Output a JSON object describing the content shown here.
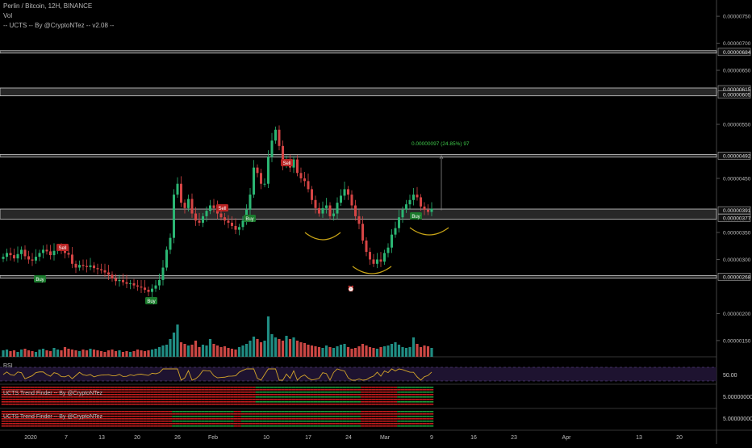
{
  "legend": {
    "title": "Perlin / Bitcoin, 12H, BINANCE",
    "volume_label": "Vol",
    "indicator_label": "-- UCTS -- By @CryptoNTez -- v2.08 --"
  },
  "panes": {
    "rsi_label": "RSI",
    "rsi_value": "50.00",
    "trend1_label": "UCTS Trend Finder -- By @CryptoNTez",
    "trend1_value": "5.00000000",
    "trend2_label": "UCTS Trend Finder -- By @CryptoNTez",
    "trend2_value": "5.00000000"
  },
  "price_axis": {
    "ticks": [
      "0.00000750",
      "0.00000700",
      "0.00000650",
      "0.00000550",
      "0.00000450",
      "0.00000350",
      "0.00000300",
      "0.00000200",
      "0.00000150"
    ],
    "tick_values": [
      750,
      700,
      650,
      550,
      450,
      350,
      300,
      200,
      150
    ],
    "level_labels": [
      "0.00000684",
      "0.00000615",
      "0.00000605",
      "0.00000492",
      "0.00000391",
      "0.00000377",
      "0.00000268"
    ],
    "level_values": [
      684,
      615,
      605,
      492,
      391,
      377,
      268
    ]
  },
  "time_axis": {
    "labels": [
      "2020",
      "7",
      "13",
      "20",
      "26",
      "Feb",
      "10",
      "17",
      "24",
      "Mar",
      "9",
      "16",
      "23",
      "Apr",
      "13",
      "20"
    ]
  },
  "measure": {
    "text": "0.00000097 (24.85%) 97"
  },
  "signals": [
    {
      "label": "Sell",
      "type": "sell"
    },
    {
      "label": "Buy",
      "type": "buy"
    },
    {
      "label": "Buy",
      "type": "buy"
    },
    {
      "label": "Sell",
      "type": "sell"
    },
    {
      "label": "Buy",
      "type": "buy"
    },
    {
      "label": "Sell",
      "type": "sell"
    },
    {
      "label": "Buy",
      "type": "buy"
    }
  ],
  "colors": {
    "background": "#000000",
    "up": "#26a69a",
    "down": "#ef5350",
    "up_candle": "#2bb673",
    "down_candle": "#d64545",
    "level_band": "#9e9e9e",
    "rsi_line": "#d4a52a",
    "rsi_bg": "#1e1330",
    "pattern": "#c8a417",
    "measure": "#3ec94a",
    "sell_badge": "#b82323",
    "buy_badge": "#1b7a2d"
  },
  "chart_data": {
    "type": "candlestick",
    "title": "Perlin / Bitcoin, 12H, BINANCE",
    "series": [
      {
        "name": "Perlin / Bitcoin",
        "type": "candlestick",
        "close": [
          305,
          312,
          308,
          302,
          310,
          318,
          306,
          300,
          298,
          305,
          312,
          318,
          315,
          308,
          316,
          322,
          318,
          312,
          309,
          292,
          285,
          290,
          288,
          286,
          289,
          284,
          282,
          280,
          276,
          272,
          265,
          260,
          262,
          258,
          255,
          256,
          252,
          250,
          248,
          244,
          240,
          246,
          252,
          262,
          285,
          318,
          340,
          420,
          440,
          405,
          395,
          412,
          385,
          372,
          368,
          380,
          390,
          400,
          395,
          385,
          378,
          372,
          368,
          362,
          355,
          360,
          372,
          392,
          420,
          470,
          460,
          440,
          440,
          490,
          520,
          540,
          510,
          475,
          480,
          470,
          485,
          460,
          450,
          445,
          430,
          410,
          395,
          385,
          395,
          400,
          380,
          385,
          405,
          418,
          430,
          420,
          400,
          380,
          366,
          335,
          314,
          300,
          292,
          300,
          296,
          312,
          322,
          346,
          358,
          378,
          392,
          402,
          410,
          420,
          415,
          398,
          392,
          388,
          394
        ],
        "ylim": [
          120,
          780
        ]
      },
      {
        "name": "Vol",
        "type": "bar",
        "values": [
          8,
          9,
          7,
          8,
          6,
          9,
          10,
          8,
          7,
          6,
          9,
          10,
          8,
          7,
          11,
          9,
          8,
          12,
          10,
          9,
          8,
          7,
          9,
          8,
          10,
          9,
          8,
          7,
          6,
          8,
          9,
          7,
          8,
          6,
          7,
          6,
          7,
          9,
          8,
          7,
          8,
          9,
          10,
          12,
          14,
          15,
          22,
          30,
          40,
          18,
          16,
          14,
          15,
          20,
          12,
          15,
          14,
          22,
          16,
          14,
          12,
          13,
          11,
          10,
          9,
          12,
          14,
          16,
          20,
          25,
          22,
          18,
          20,
          50,
          28,
          24,
          22,
          20,
          26,
          22,
          24,
          20,
          18,
          17,
          15,
          14,
          13,
          12,
          11,
          14,
          12,
          11,
          13,
          15,
          16,
          12,
          10,
          11,
          13,
          16,
          14,
          12,
          11,
          10,
          12,
          13,
          14,
          16,
          18,
          15,
          12,
          11,
          12,
          24,
          16,
          12,
          14,
          13,
          11
        ]
      },
      {
        "name": "RSI",
        "type": "line",
        "ylim": [
          0,
          100
        ]
      }
    ]
  }
}
